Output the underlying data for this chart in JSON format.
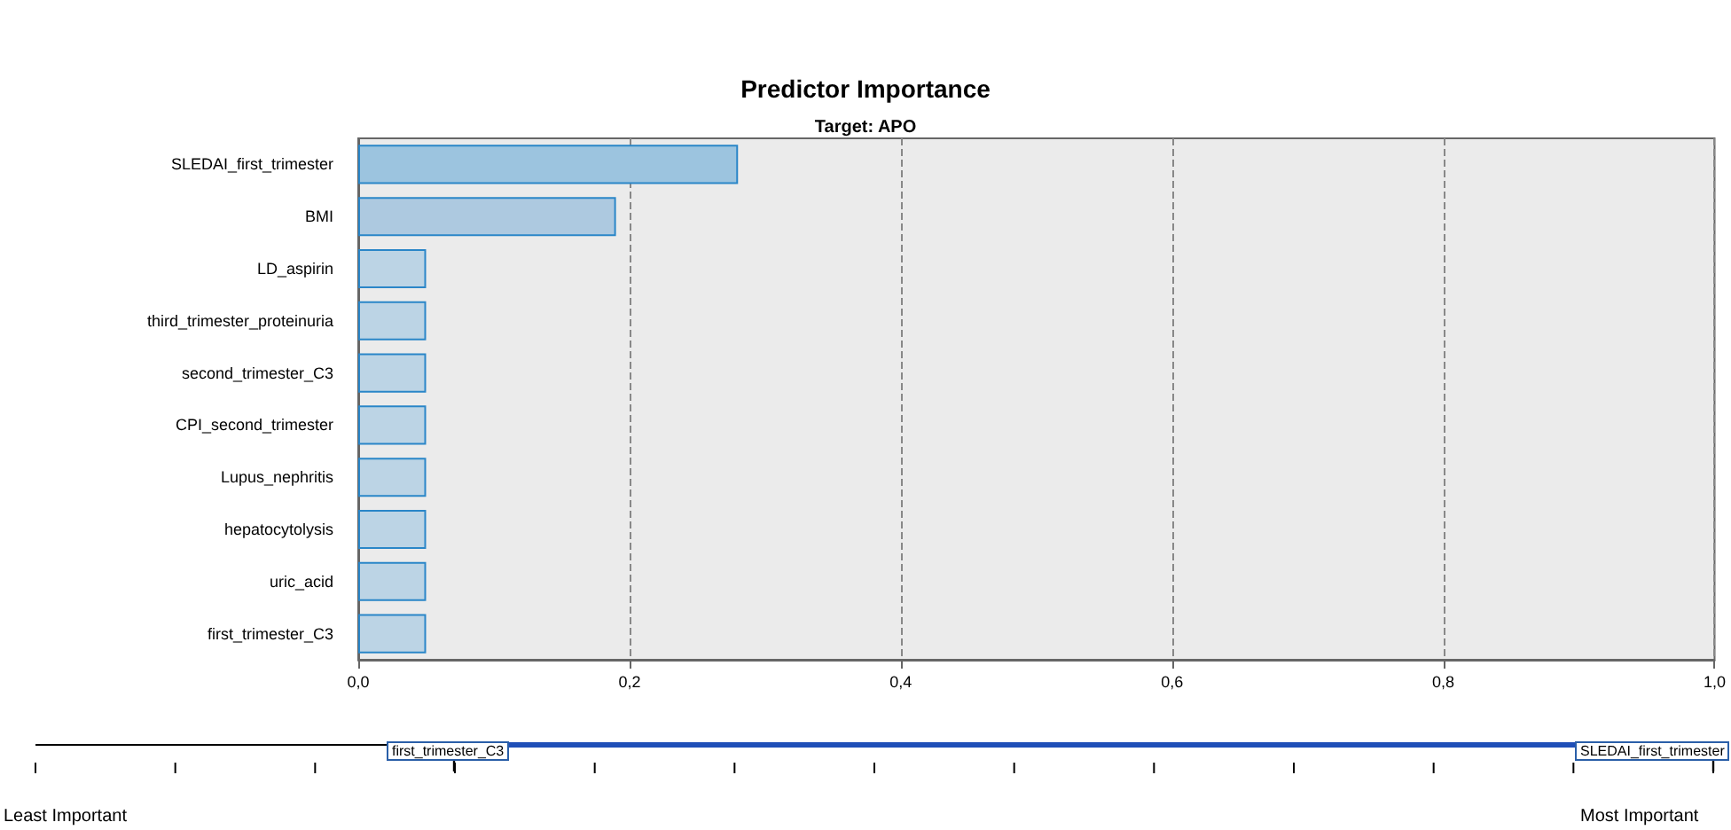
{
  "chart_data": {
    "type": "bar",
    "orientation": "horizontal",
    "title": "Predictor Importance",
    "subtitle": "Target: APO",
    "categories": [
      "SLEDAI_first_trimester",
      "BMI",
      "LD_aspirin",
      "third_trimester_proteinuria",
      "second_trimester_C3",
      "CPI_second_trimester",
      "Lupus_nephritis",
      "hepatocytolysis",
      "uric_acid",
      "first_trimester_C3"
    ],
    "values": [
      0.28,
      0.19,
      0.05,
      0.05,
      0.05,
      0.05,
      0.05,
      0.05,
      0.05,
      0.05
    ],
    "colors": [
      "#9cc4df",
      "#adc9e0",
      "#bcd4e5",
      "#bcd4e5",
      "#bcd4e5",
      "#bcd4e5",
      "#bcd4e5",
      "#bcd4e5",
      "#bcd4e5",
      "#bcd4e5"
    ],
    "xlim": [
      0,
      1
    ],
    "xticks": [
      {
        "value": 0,
        "label": "0,0"
      },
      {
        "value": 0.2,
        "label": "0,2"
      },
      {
        "value": 0.4,
        "label": "0,4"
      },
      {
        "value": 0.6,
        "label": "0,6"
      },
      {
        "value": 0.8,
        "label": "0,8"
      },
      {
        "value": 1,
        "label": "1,0"
      }
    ],
    "grid": "x",
    "annotations": [
      "first_trimester_C3",
      "SLEDAI_first_trimester",
      "Least Important",
      "Most Important"
    ]
  }
}
